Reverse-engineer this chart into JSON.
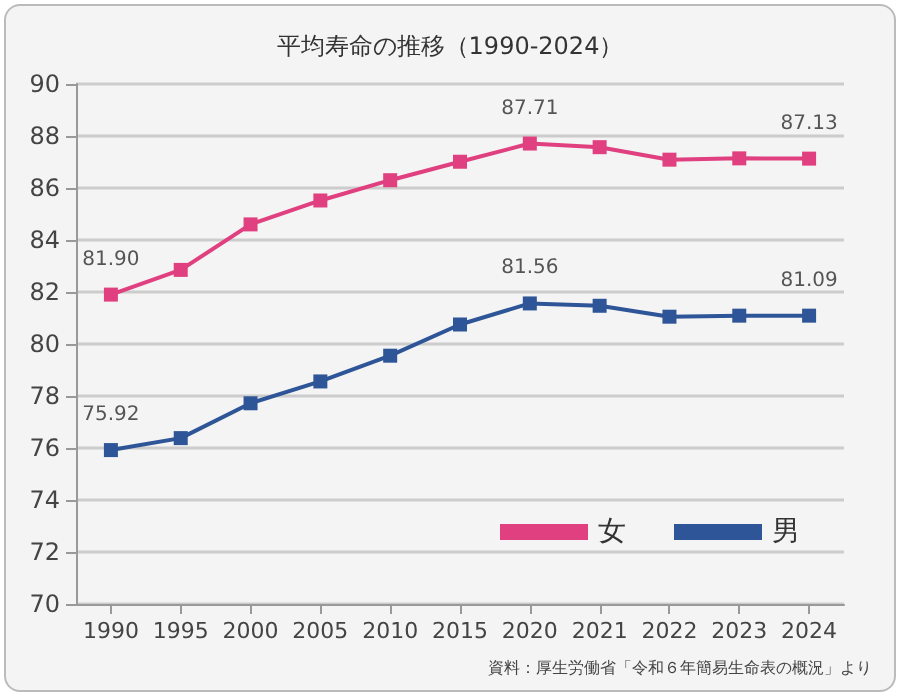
{
  "chart_data": {
    "type": "line",
    "title": "平均寿命の推移（1990-2024）",
    "categories": [
      "1990",
      "1995",
      "2000",
      "2005",
      "2010",
      "2015",
      "2020",
      "2021",
      "2022",
      "2023",
      "2024"
    ],
    "series": [
      {
        "name": "女",
        "color": "#e0407f",
        "values": [
          81.9,
          82.85,
          84.6,
          85.52,
          86.3,
          87.01,
          87.71,
          87.57,
          87.09,
          87.14,
          87.13
        ],
        "value_labels": [
          "81.90",
          null,
          null,
          null,
          null,
          null,
          "87.71",
          null,
          null,
          null,
          "87.13"
        ]
      },
      {
        "name": "男",
        "color": "#2e5597",
        "values": [
          75.92,
          76.38,
          77.72,
          78.56,
          79.55,
          80.75,
          81.56,
          81.47,
          81.05,
          81.09,
          81.09
        ],
        "value_labels": [
          "75.92",
          null,
          null,
          null,
          null,
          null,
          "81.56",
          null,
          null,
          null,
          "81.09"
        ]
      }
    ],
    "ylim": [
      70,
      90
    ],
    "yticks": [
      70,
      72,
      74,
      76,
      78,
      80,
      82,
      84,
      86,
      88,
      90
    ],
    "grid": "y",
    "legend": "bottom right",
    "marker": "square",
    "line_style": "solid",
    "annotations": [
      "資料：厚生労働省「令和６年簡易生命表の概況」より"
    ]
  }
}
